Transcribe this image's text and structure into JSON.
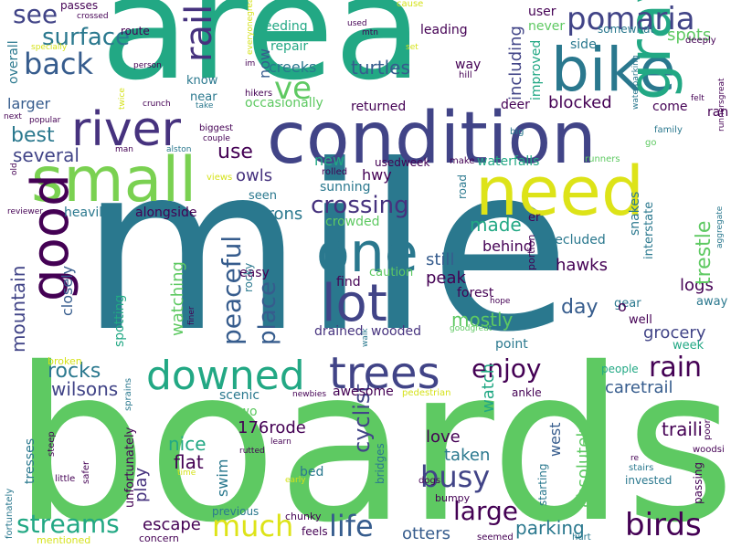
{
  "palette": {
    "yellow": "#d5e21a",
    "lime": "#a2da37",
    "green": "#5cc863",
    "teal_green": "#1fa187",
    "teal": "#277f8e",
    "blue": "#365c8d",
    "indigo": "#46327e",
    "purple": "#440154"
  },
  "words": [
    "mile",
    "boards",
    "area",
    "condition",
    "river",
    "need",
    "bike",
    "one",
    "small",
    "gravel",
    "good",
    "lot",
    "trees",
    "downed",
    "rail",
    "pomaria",
    "ve",
    "surface",
    "back",
    "see",
    "life",
    "birds",
    "much",
    "streams",
    "large",
    "rain",
    "busy",
    "enjoy",
    "crossing",
    "peaceful",
    "place",
    "watching",
    "mountain",
    "rocks",
    "wilsons",
    "several",
    "best",
    "larger",
    "use",
    "owls",
    "herons",
    "hawks",
    "made",
    "peak",
    "still",
    "mostly",
    "day",
    "grocery",
    "logs",
    "trestle",
    "spots",
    "blocked",
    "turtles",
    "including",
    "caretrail",
    "traili",
    "cyclist",
    "176rode",
    "nice",
    "flat",
    "swim",
    "play",
    "taken",
    "love",
    "west",
    "watch",
    "absolutely",
    "parking",
    "otters",
    "escape",
    "new",
    "sunning",
    "alongside",
    "heavily",
    "closely",
    "spotting",
    "behind",
    "forest",
    "drained",
    "wooded",
    "crowded",
    "secluded",
    "snakes",
    "interstate",
    "waterfalls",
    "deer",
    "returned",
    "occasionally",
    "creeks",
    "now",
    "repair",
    "feeding",
    "leading",
    "way",
    "improved",
    "user",
    "never",
    "somewhat",
    "side",
    "come",
    "ran",
    "week",
    "point",
    "well",
    "gear",
    "away",
    "scenic",
    "two",
    "awesome",
    "ankle",
    "people",
    "starting",
    "invested",
    "passing",
    "unfortunately",
    "tresses",
    "previous",
    "chunky",
    "feels",
    "concern",
    "bed",
    "bridges",
    "bumpy",
    "seemed",
    "hurt",
    "mentioned",
    "fortunately",
    "little",
    "time",
    "safer",
    "steep",
    "sprains",
    "broken",
    "newbies",
    "pedestrian",
    "dogs",
    "stairs",
    "re",
    "woodsi",
    "poor",
    "easy",
    "rocky",
    "seen",
    "caution",
    "find",
    "portion",
    "hope",
    "goodgreat",
    "walk",
    "finer",
    "views",
    "rolled",
    "road",
    "make",
    "runners",
    "usedweek",
    "hwy",
    "er",
    "big",
    "family",
    "go",
    "runnersgreat",
    "aggregate",
    "felt",
    "deeply",
    "waterparking",
    "hill",
    "used",
    "mtn",
    "set",
    "im",
    "everyonegreat",
    "hikers",
    "crunch",
    "take",
    "near",
    "know",
    "twice",
    "overall",
    "specially",
    "popular",
    "next",
    "man",
    "alston",
    "couple",
    "biggest",
    "old",
    "reviewer",
    "route",
    "person",
    "passes",
    "crossed",
    "cause",
    "learn",
    "rutted",
    "early",
    "o"
  ]
}
